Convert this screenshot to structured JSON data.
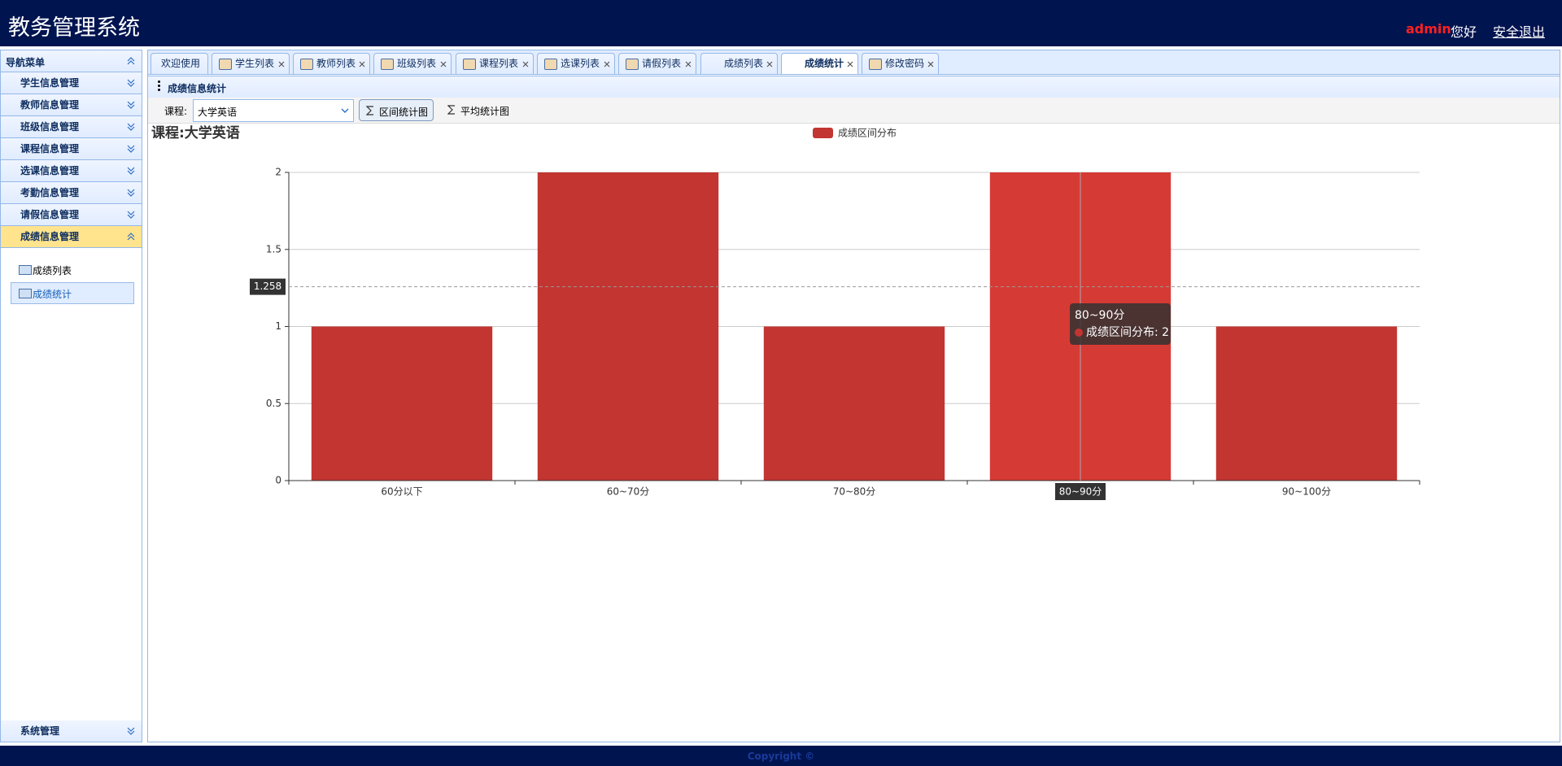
{
  "header": {
    "title": "教务管理系统",
    "user": "admin",
    "greeting": "您好",
    "logout": "安全退出"
  },
  "sidebar": {
    "title": "导航菜单",
    "menus": [
      "学生信息管理",
      "教师信息管理",
      "班级信息管理",
      "课程信息管理",
      "选课信息管理",
      "考勤信息管理",
      "请假信息管理",
      "成绩信息管理"
    ],
    "sub_items": [
      "成绩列表",
      "成绩统计"
    ],
    "bottom": "系统管理"
  },
  "tabs": [
    "欢迎使用",
    "学生列表",
    "教师列表",
    "班级列表",
    "课程列表",
    "选课列表",
    "请假列表",
    "成绩列表",
    "成绩统计",
    "修改密码"
  ],
  "panel": {
    "title": "成绩信息统计",
    "course_label": "课程:",
    "course": "大学英语",
    "button_range": "区间统计图",
    "button_avg": "平均统计图"
  },
  "chart_data": {
    "type": "bar",
    "title": "课程:大学英语",
    "categories": [
      "60分以下",
      "60~70分",
      "70~80分",
      "80~90分",
      "90~100分"
    ],
    "series": [
      {
        "name": "成绩区间分布",
        "color": "#c23531",
        "values": [
          1,
          2,
          1,
          2,
          1
        ]
      }
    ],
    "ylim": [
      0,
      2
    ],
    "yticks": [
      0,
      0.5,
      1,
      1.5,
      2
    ],
    "grid": true,
    "axis_pointer": {
      "y": 1.258,
      "x": "80~90分"
    },
    "tooltip": {
      "title": "80~90分",
      "line": "成绩区间分布: 2"
    }
  },
  "footer": "Copyright ©"
}
